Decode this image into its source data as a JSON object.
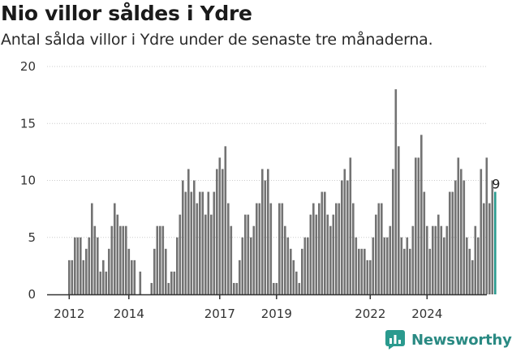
{
  "header": {
    "title": "Nio villor såldes i Ydre",
    "subtitle": "Antal sålda villor i Ydre under de senaste tre månaderna."
  },
  "brand": {
    "name": "Newsworthy",
    "icon": "chart-bars-icon"
  },
  "colors": {
    "bar": "#737373",
    "highlight": "#2a9a8e",
    "grid": "#cccccc",
    "axis": "#333333",
    "brand": "#2a8a83"
  },
  "chart_data": {
    "type": "bar",
    "title": "",
    "xlabel": "",
    "ylabel": "",
    "ylim": [
      0,
      20
    ],
    "yticks": [
      0,
      5,
      10,
      15,
      20
    ],
    "xticks": [
      {
        "label": "2012",
        "index": 0
      },
      {
        "label": "2014",
        "index": 21
      },
      {
        "label": "2017",
        "index": 53
      },
      {
        "label": "2019",
        "index": 73
      },
      {
        "label": "2022",
        "index": 106
      },
      {
        "label": "2024",
        "index": 126
      }
    ],
    "last_value_label": "9",
    "grid": true,
    "legend": "none",
    "values": [
      3,
      3,
      5,
      5,
      5,
      3,
      4,
      5,
      8,
      6,
      5,
      2,
      3,
      2,
      4,
      6,
      8,
      7,
      6,
      6,
      6,
      4,
      3,
      3,
      0,
      2,
      0,
      0,
      0,
      1,
      4,
      6,
      6,
      6,
      4,
      1,
      2,
      2,
      5,
      7,
      10,
      9,
      11,
      9,
      10,
      8,
      9,
      9,
      7,
      9,
      7,
      9,
      11,
      12,
      11,
      13,
      8,
      6,
      1,
      1,
      3,
      5,
      7,
      7,
      5,
      6,
      8,
      8,
      11,
      10,
      11,
      8,
      1,
      1,
      8,
      8,
      6,
      5,
      4,
      3,
      2,
      1,
      4,
      5,
      5,
      7,
      8,
      7,
      8,
      9,
      9,
      7,
      6,
      7,
      8,
      8,
      10,
      11,
      10,
      12,
      8,
      5,
      4,
      4,
      4,
      3,
      3,
      5,
      7,
      8,
      8,
      5,
      5,
      6,
      11,
      18,
      13,
      5,
      4,
      5,
      4,
      6,
      12,
      12,
      14,
      9,
      6,
      4,
      6,
      6,
      7,
      6,
      5,
      6,
      9,
      9,
      10,
      12,
      11,
      10,
      5,
      4,
      3,
      6,
      5,
      11,
      8,
      12,
      8,
      10,
      9
    ]
  }
}
